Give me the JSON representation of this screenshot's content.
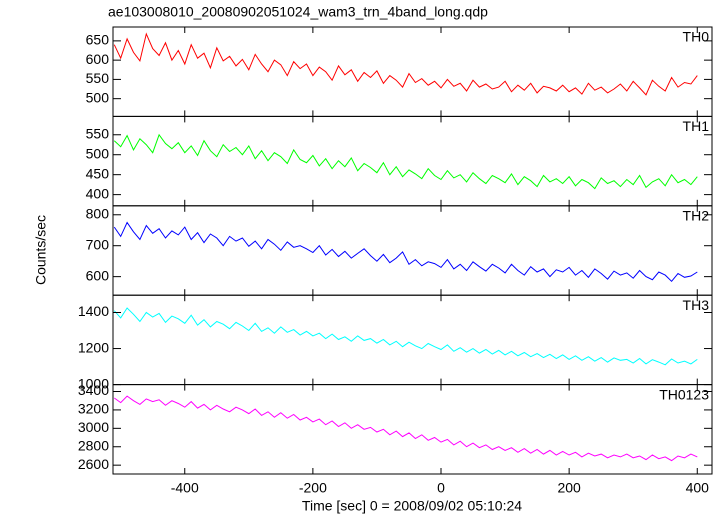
{
  "chart_data": {
    "type": "line",
    "title": "ae103008010_20080902051024_wam3_trn_4band_long.qdp",
    "xlabel": "Time [sec] 0 = 2008/09/02 05:10:24",
    "ylabel": "Counts/sec",
    "xlim": [
      -512,
      423
    ],
    "xticks": [
      -400,
      -200,
      0,
      200,
      400
    ],
    "x": [
      -510,
      -500,
      -490,
      -480,
      -470,
      -460,
      -450,
      -440,
      -430,
      -420,
      -410,
      -400,
      -390,
      -380,
      -370,
      -360,
      -350,
      -340,
      -330,
      -320,
      -310,
      -300,
      -290,
      -280,
      -270,
      -260,
      -250,
      -240,
      -230,
      -220,
      -210,
      -200,
      -190,
      -180,
      -170,
      -160,
      -150,
      -140,
      -130,
      -120,
      -110,
      -100,
      -90,
      -80,
      -70,
      -60,
      -50,
      -40,
      -30,
      -20,
      -10,
      0,
      10,
      20,
      30,
      40,
      50,
      60,
      70,
      80,
      90,
      100,
      110,
      120,
      130,
      140,
      150,
      160,
      170,
      180,
      190,
      200,
      210,
      220,
      230,
      240,
      250,
      260,
      270,
      280,
      290,
      300,
      310,
      320,
      330,
      340,
      350,
      360,
      370,
      380,
      390,
      400
    ],
    "series": [
      {
        "name": "TH0",
        "color": "#ff0000",
        "ylim": [
          454,
          686
        ],
        "yticks": [
          500,
          550,
          600,
          650
        ],
        "values": [
          640,
          605,
          655,
          620,
          598,
          668,
          630,
          612,
          645,
          600,
          625,
          590,
          640,
          605,
          618,
          580,
          632,
          598,
          610,
          585,
          602,
          575,
          615,
          590,
          570,
          600,
          588,
          560,
          596,
          578,
          590,
          560,
          582,
          570,
          548,
          585,
          562,
          575,
          545,
          568,
          555,
          572,
          540,
          560,
          548,
          530,
          565,
          542,
          552,
          535,
          545,
          528,
          550,
          532,
          540,
          520,
          548,
          530,
          538,
          525,
          530,
          545,
          518,
          535,
          522,
          540,
          515,
          532,
          528,
          520,
          535,
          518,
          528,
          512,
          540,
          522,
          530,
          515,
          525,
          538,
          520,
          545,
          528,
          510,
          548,
          532,
          520,
          555,
          530,
          542,
          538,
          560
        ]
      },
      {
        "name": "TH1",
        "color": "#00ff00",
        "ylim": [
          372,
          596
        ],
        "yticks": [
          400,
          450,
          500,
          550
        ],
        "values": [
          535,
          520,
          548,
          512,
          540,
          525,
          505,
          550,
          528,
          515,
          530,
          505,
          522,
          498,
          535,
          510,
          495,
          525,
          508,
          518,
          500,
          522,
          490,
          510,
          485,
          505,
          495,
          478,
          512,
          488,
          480,
          498,
          472,
          490,
          465,
          485,
          470,
          492,
          460,
          478,
          468,
          455,
          480,
          450,
          470,
          445,
          462,
          452,
          440,
          465,
          448,
          438,
          460,
          442,
          450,
          432,
          455,
          440,
          428,
          448,
          440,
          430,
          452,
          425,
          445,
          435,
          420,
          448,
          432,
          440,
          428,
          445,
          422,
          438,
          430,
          415,
          442,
          428,
          435,
          420,
          438,
          425,
          448,
          418,
          432,
          440,
          422,
          450,
          430,
          438,
          425,
          445
        ]
      },
      {
        "name": "TH2",
        "color": "#0000ff",
        "ylim": [
          540,
          829
        ],
        "yticks": [
          600,
          700,
          800
        ],
        "values": [
          760,
          730,
          775,
          745,
          720,
          765,
          740,
          755,
          725,
          748,
          735,
          760,
          720,
          742,
          710,
          738,
          725,
          700,
          730,
          715,
          725,
          698,
          715,
          690,
          720,
          705,
          685,
          712,
          695,
          700,
          690,
          678,
          700,
          670,
          688,
          665,
          682,
          660,
          675,
          690,
          668,
          650,
          672,
          645,
          660,
          680,
          640,
          655,
          635,
          648,
          642,
          630,
          655,
          625,
          640,
          620,
          648,
          632,
          618,
          640,
          628,
          612,
          640,
          620,
          605,
          632,
          615,
          625,
          600,
          622,
          615,
          630,
          605,
          620,
          598,
          625,
          610,
          592,
          618,
          605,
          612,
          595,
          620,
          600,
          590,
          615,
          605,
          585,
          610,
          598,
          602,
          615
        ]
      },
      {
        "name": "TH3",
        "color": "#00ffff",
        "ylim": [
          1000,
          1496
        ],
        "yticks": [
          1000,
          1200,
          1400
        ],
        "values": [
          1410,
          1370,
          1425,
          1390,
          1350,
          1400,
          1375,
          1395,
          1345,
          1380,
          1365,
          1340,
          1385,
          1330,
          1360,
          1320,
          1350,
          1335,
          1310,
          1345,
          1325,
          1300,
          1340,
          1295,
          1315,
          1285,
          1320,
          1290,
          1305,
          1275,
          1295,
          1270,
          1285,
          1255,
          1280,
          1250,
          1265,
          1240,
          1270,
          1245,
          1255,
          1230,
          1250,
          1220,
          1240,
          1210,
          1235,
          1215,
          1200,
          1228,
          1210,
          1195,
          1220,
          1185,
          1205,
          1180,
          1200,
          1175,
          1195,
          1170,
          1190,
          1165,
          1185,
          1160,
          1178,
          1155,
          1172,
          1150,
          1168,
          1145,
          1165,
          1140,
          1160,
          1135,
          1155,
          1130,
          1150,
          1125,
          1148,
          1135,
          1140,
          1120,
          1145,
          1115,
          1138,
          1125,
          1110,
          1142,
          1120,
          1130,
          1115,
          1140
        ]
      },
      {
        "name": "TH0123",
        "color": "#ff00ff",
        "ylim": [
          2504,
          3475
        ],
        "yticks": [
          2600,
          2800,
          3000,
          3200,
          3400
        ],
        "values": [
          3330,
          3280,
          3350,
          3300,
          3260,
          3320,
          3290,
          3310,
          3250,
          3300,
          3270,
          3230,
          3290,
          3220,
          3260,
          3200,
          3250,
          3210,
          3180,
          3230,
          3200,
          3160,
          3210,
          3140,
          3180,
          3120,
          3170,
          3110,
          3150,
          3090,
          3120,
          3070,
          3100,
          3040,
          3080,
          3020,
          3060,
          3000,
          3040,
          2990,
          3010,
          2960,
          2990,
          2930,
          2970,
          2910,
          2950,
          2890,
          2930,
          2870,
          2900,
          2850,
          2880,
          2820,
          2860,
          2800,
          2840,
          2790,
          2820,
          2770,
          2800,
          2760,
          2790,
          2740,
          2780,
          2730,
          2770,
          2720,
          2760,
          2710,
          2750,
          2710,
          2740,
          2690,
          2730,
          2700,
          2720,
          2680,
          2710,
          2690,
          2720,
          2680,
          2700,
          2660,
          2710,
          2670,
          2690,
          2650,
          2700,
          2680,
          2720,
          2690
        ]
      }
    ]
  }
}
